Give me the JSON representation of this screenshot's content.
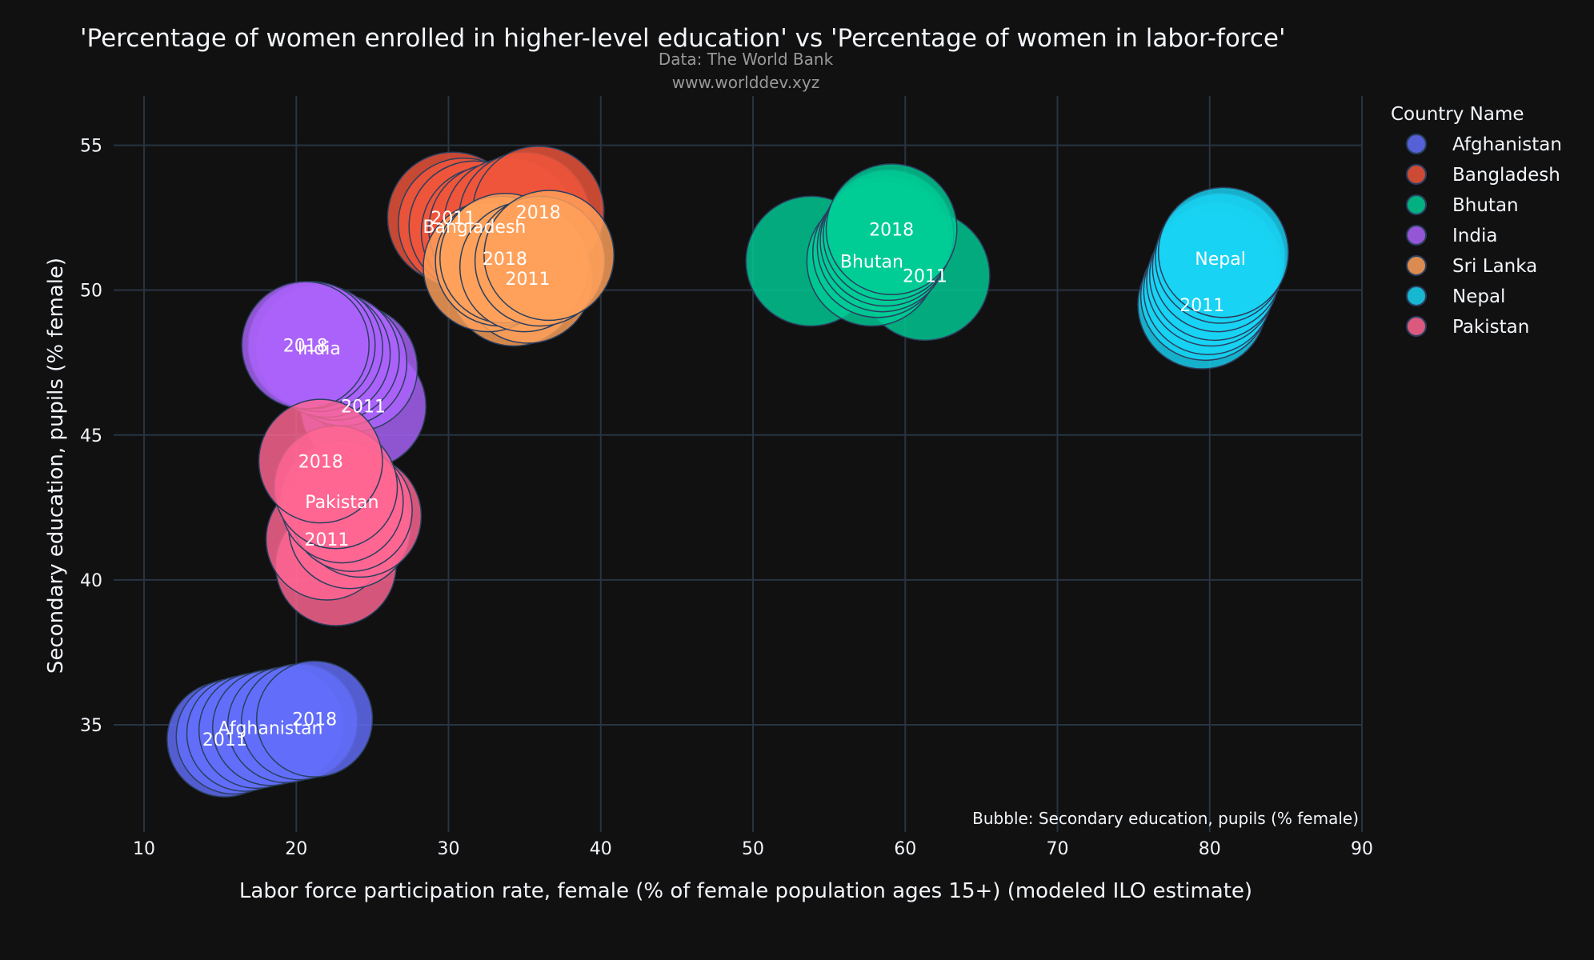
{
  "chart_data": {
    "type": "scatter",
    "title": "'Percentage of women enrolled in higher-level education' vs 'Percentage of women in labor-force'",
    "subtitle_lines": [
      "Data: The World Bank",
      "www.worlddev.xyz"
    ],
    "xlabel": "Labor force participation rate, female (% of female population ages 15+) (modeled ILO estimate)",
    "ylabel": "Secondary education, pupils (% female)",
    "bubble_note": "Bubble: Secondary education, pupils (% female)",
    "xlim": [
      8,
      90
    ],
    "ylim": [
      31.3,
      56.7
    ],
    "xticks": [
      10,
      20,
      30,
      40,
      50,
      60,
      70,
      80,
      90
    ],
    "yticks": [
      35,
      40,
      45,
      50,
      55
    ],
    "grid": true,
    "legend_title": "Country Name",
    "legend_position": "right",
    "series": [
      {
        "name": "Afghanistan",
        "color": "#636efa",
        "points": [
          {
            "x": 15.3,
            "y": 34.5,
            "label": "2011"
          },
          {
            "x": 15.9,
            "y": 34.6
          },
          {
            "x": 16.6,
            "y": 34.7
          },
          {
            "x": 17.4,
            "y": 34.8
          },
          {
            "x": 18.3,
            "y": 34.9,
            "label": "Afghanistan"
          },
          {
            "x": 19.3,
            "y": 35.0
          },
          {
            "x": 20.2,
            "y": 35.1
          },
          {
            "x": 21.2,
            "y": 35.2,
            "label": "2018"
          }
        ]
      },
      {
        "name": "Bangladesh",
        "color": "#ef553b",
        "points": [
          {
            "x": 30.3,
            "y": 52.5,
            "label": "2011"
          },
          {
            "x": 31.0,
            "y": 52.3
          },
          {
            "x": 31.7,
            "y": 52.2,
            "label": "Bangladesh"
          },
          {
            "x": 32.5,
            "y": 52.0
          },
          {
            "x": 33.0,
            "y": 52.1
          },
          {
            "x": 34.0,
            "y": 52.3
          },
          {
            "x": 35.0,
            "y": 52.5
          },
          {
            "x": 35.9,
            "y": 52.7,
            "label": "2018"
          }
        ]
      },
      {
        "name": "Bhutan",
        "color": "#00cc96",
        "points": [
          {
            "x": 53.8,
            "y": 51.0
          },
          {
            "x": 61.3,
            "y": 50.5,
            "label": "2011"
          },
          {
            "x": 57.8,
            "y": 51.0,
            "label": "Bhutan"
          },
          {
            "x": 58.2,
            "y": 51.3
          },
          {
            "x": 58.5,
            "y": 51.5
          },
          {
            "x": 58.7,
            "y": 51.7
          },
          {
            "x": 58.9,
            "y": 51.9
          },
          {
            "x": 59.1,
            "y": 52.1,
            "label": "2018"
          }
        ]
      },
      {
        "name": "India",
        "color": "#ab63fa",
        "points": [
          {
            "x": 24.4,
            "y": 46.0,
            "label": "2011"
          },
          {
            "x": 23.8,
            "y": 47.3
          },
          {
            "x": 23.1,
            "y": 47.5
          },
          {
            "x": 22.6,
            "y": 47.7
          },
          {
            "x": 22.0,
            "y": 47.8
          },
          {
            "x": 21.5,
            "y": 48.0,
            "label": "India"
          },
          {
            "x": 21.0,
            "y": 48.1
          },
          {
            "x": 20.6,
            "y": 48.1,
            "label": "2018"
          }
        ]
      },
      {
        "name": "Sri Lanka",
        "color": "#ffa15a",
        "points": [
          {
            "x": 34.3,
            "y": 50.3
          },
          {
            "x": 35.2,
            "y": 50.4,
            "label": "2011"
          },
          {
            "x": 32.6,
            "y": 50.8
          },
          {
            "x": 33.4,
            "y": 51.0
          },
          {
            "x": 33.7,
            "y": 51.1,
            "label": "2018"
          },
          {
            "x": 35.0,
            "y": 50.8
          },
          {
            "x": 36.0,
            "y": 51.0
          },
          {
            "x": 36.6,
            "y": 51.2
          }
        ]
      },
      {
        "name": "Nepal",
        "color": "#19d3f3",
        "points": [
          {
            "x": 79.5,
            "y": 49.5,
            "label": "2011"
          },
          {
            "x": 79.7,
            "y": 49.8
          },
          {
            "x": 79.9,
            "y": 50.0
          },
          {
            "x": 80.1,
            "y": 50.3
          },
          {
            "x": 80.3,
            "y": 50.5
          },
          {
            "x": 80.5,
            "y": 50.8
          },
          {
            "x": 80.7,
            "y": 51.1,
            "label": "Nepal"
          },
          {
            "x": 80.9,
            "y": 51.3
          }
        ]
      },
      {
        "name": "Pakistan",
        "color": "#ff6692",
        "points": [
          {
            "x": 22.6,
            "y": 40.5
          },
          {
            "x": 22.0,
            "y": 41.4,
            "label": "2011"
          },
          {
            "x": 23.5,
            "y": 41.8
          },
          {
            "x": 24.2,
            "y": 42.2
          },
          {
            "x": 23.6,
            "y": 42.4
          },
          {
            "x": 23.0,
            "y": 42.7,
            "label": "Pakistan"
          },
          {
            "x": 22.6,
            "y": 43.2
          },
          {
            "x": 21.6,
            "y": 44.1,
            "label": "2018"
          }
        ]
      }
    ]
  }
}
